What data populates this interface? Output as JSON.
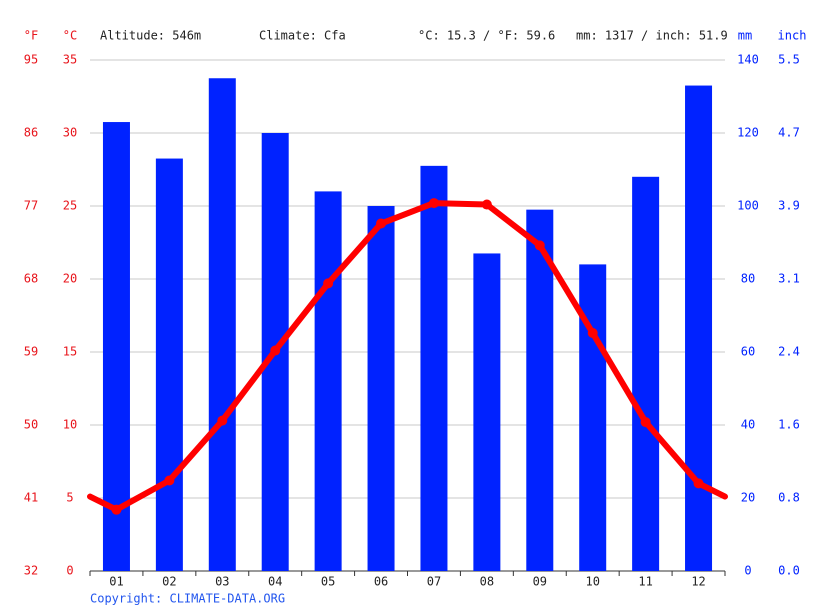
{
  "header": {
    "altitude": "Altitude: 546m",
    "climate": "Climate: Cfa",
    "temperature": "°C: 15.3 / °F: 59.6",
    "precipitation": "mm: 1317 / inch: 51.9"
  },
  "footer": {
    "copyright": "Copyright: CLIMATE-DATA.ORG"
  },
  "chart_data": {
    "type": "bar",
    "categories": [
      "01",
      "02",
      "03",
      "04",
      "05",
      "06",
      "07",
      "08",
      "09",
      "10",
      "11",
      "12"
    ],
    "series": [
      {
        "type": "bar",
        "axis": "y2",
        "color": "#0022ff",
        "values": [
          123,
          113,
          135,
          120,
          104,
          100,
          111,
          87,
          99,
          84,
          108,
          133
        ]
      },
      {
        "type": "line",
        "color": "#ff0000",
        "values": [
          4.2,
          6.2,
          10.3,
          15.1,
          19.7,
          23.8,
          25.2,
          25.1,
          22.3,
          16.3,
          10.2,
          6.0
        ]
      }
    ],
    "y_label": "°C",
    "ylim": [
      0,
      35
    ],
    "yticks": [
      0,
      5,
      10,
      15,
      20,
      25,
      30,
      35
    ],
    "y3_label": "°F",
    "y3lim": [
      32,
      95
    ],
    "y3ticks": [
      32,
      41,
      50,
      59,
      68,
      77,
      86,
      95
    ],
    "y2_label": "mm",
    "y2lim": [
      0,
      140
    ],
    "y2ticks": [
      0,
      20,
      40,
      60,
      80,
      100,
      120,
      140
    ],
    "y4_label": "inch",
    "y4lim": [
      0,
      5.5118
    ],
    "y4ticks": [
      {
        "value": 0,
        "label": "0.0"
      },
      {
        "value": 0.7874,
        "label": "0.8"
      },
      {
        "value": 1.5748,
        "label": "1.6"
      },
      {
        "value": 2.3622,
        "label": "2.4"
      },
      {
        "value": 3.1496,
        "label": "3.1"
      },
      {
        "value": 3.937,
        "label": "3.9"
      },
      {
        "value": 4.7244,
        "label": "4.7"
      },
      {
        "value": 5.5118,
        "label": "5.5"
      }
    ],
    "grid": true
  }
}
